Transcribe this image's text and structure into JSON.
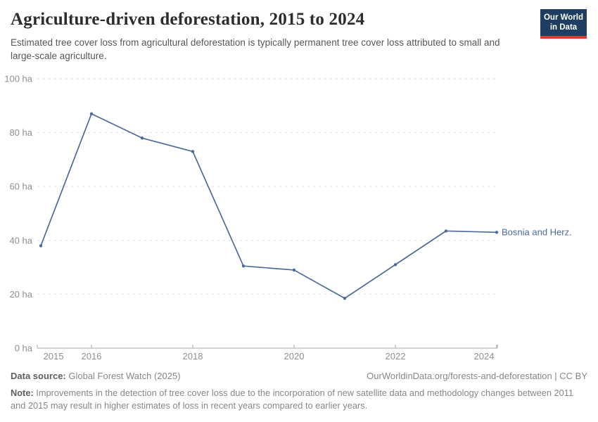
{
  "header": {
    "title": "Agriculture-driven deforestation, 2015 to 2024",
    "subtitle": "Estimated tree cover loss from agricultural deforestation is typically permanent tree cover loss attributed to small and large-scale agriculture.",
    "logo": {
      "line1": "Our World",
      "line2": "in Data"
    }
  },
  "chart_data": {
    "type": "line",
    "title": "Agriculture-driven deforestation, 2015 to 2024",
    "x": [
      2015,
      2016,
      2017,
      2018,
      2019,
      2020,
      2021,
      2022,
      2023,
      2024
    ],
    "series": [
      {
        "name": "Bosnia and Herz.",
        "values": [
          38,
          87,
          78,
          73,
          30.5,
          29,
          18.5,
          31,
          43.5,
          43
        ],
        "color": "#4C6A9C"
      }
    ],
    "unit": "ha",
    "ylim": [
      0,
      100
    ],
    "yticks": [
      0,
      20,
      40,
      60,
      80,
      100
    ],
    "xticks": [
      2015,
      2016,
      2018,
      2020,
      2022,
      2024
    ],
    "grid": "horizontal-dashed",
    "legend_position": "end-of-line-label",
    "end_label": "Bosnia and Herz."
  },
  "footer": {
    "datasource_label": "Data source:",
    "datasource_value": " Global Forest Watch (2025)",
    "attribution": "OurWorldinData.org/forests-and-deforestation | CC BY",
    "note_label": "Note:",
    "note_value": " Improvements in the detection of tree cover loss due to the incorporation of new satellite data and methodology changes between 2011 and 2015 may result in higher estimates of loss in recent years compared to earlier years."
  },
  "colors": {
    "accent": "#4C6A9C",
    "logo_bg": "#1d3d63",
    "logo_red": "#d73c34",
    "grid": "#dadada",
    "axis": "#a9a9a9",
    "tick_text": "#8f8f8f",
    "title_text": "#2d2d2d",
    "subtitle_text": "#565656",
    "footer_text": "#878787"
  }
}
